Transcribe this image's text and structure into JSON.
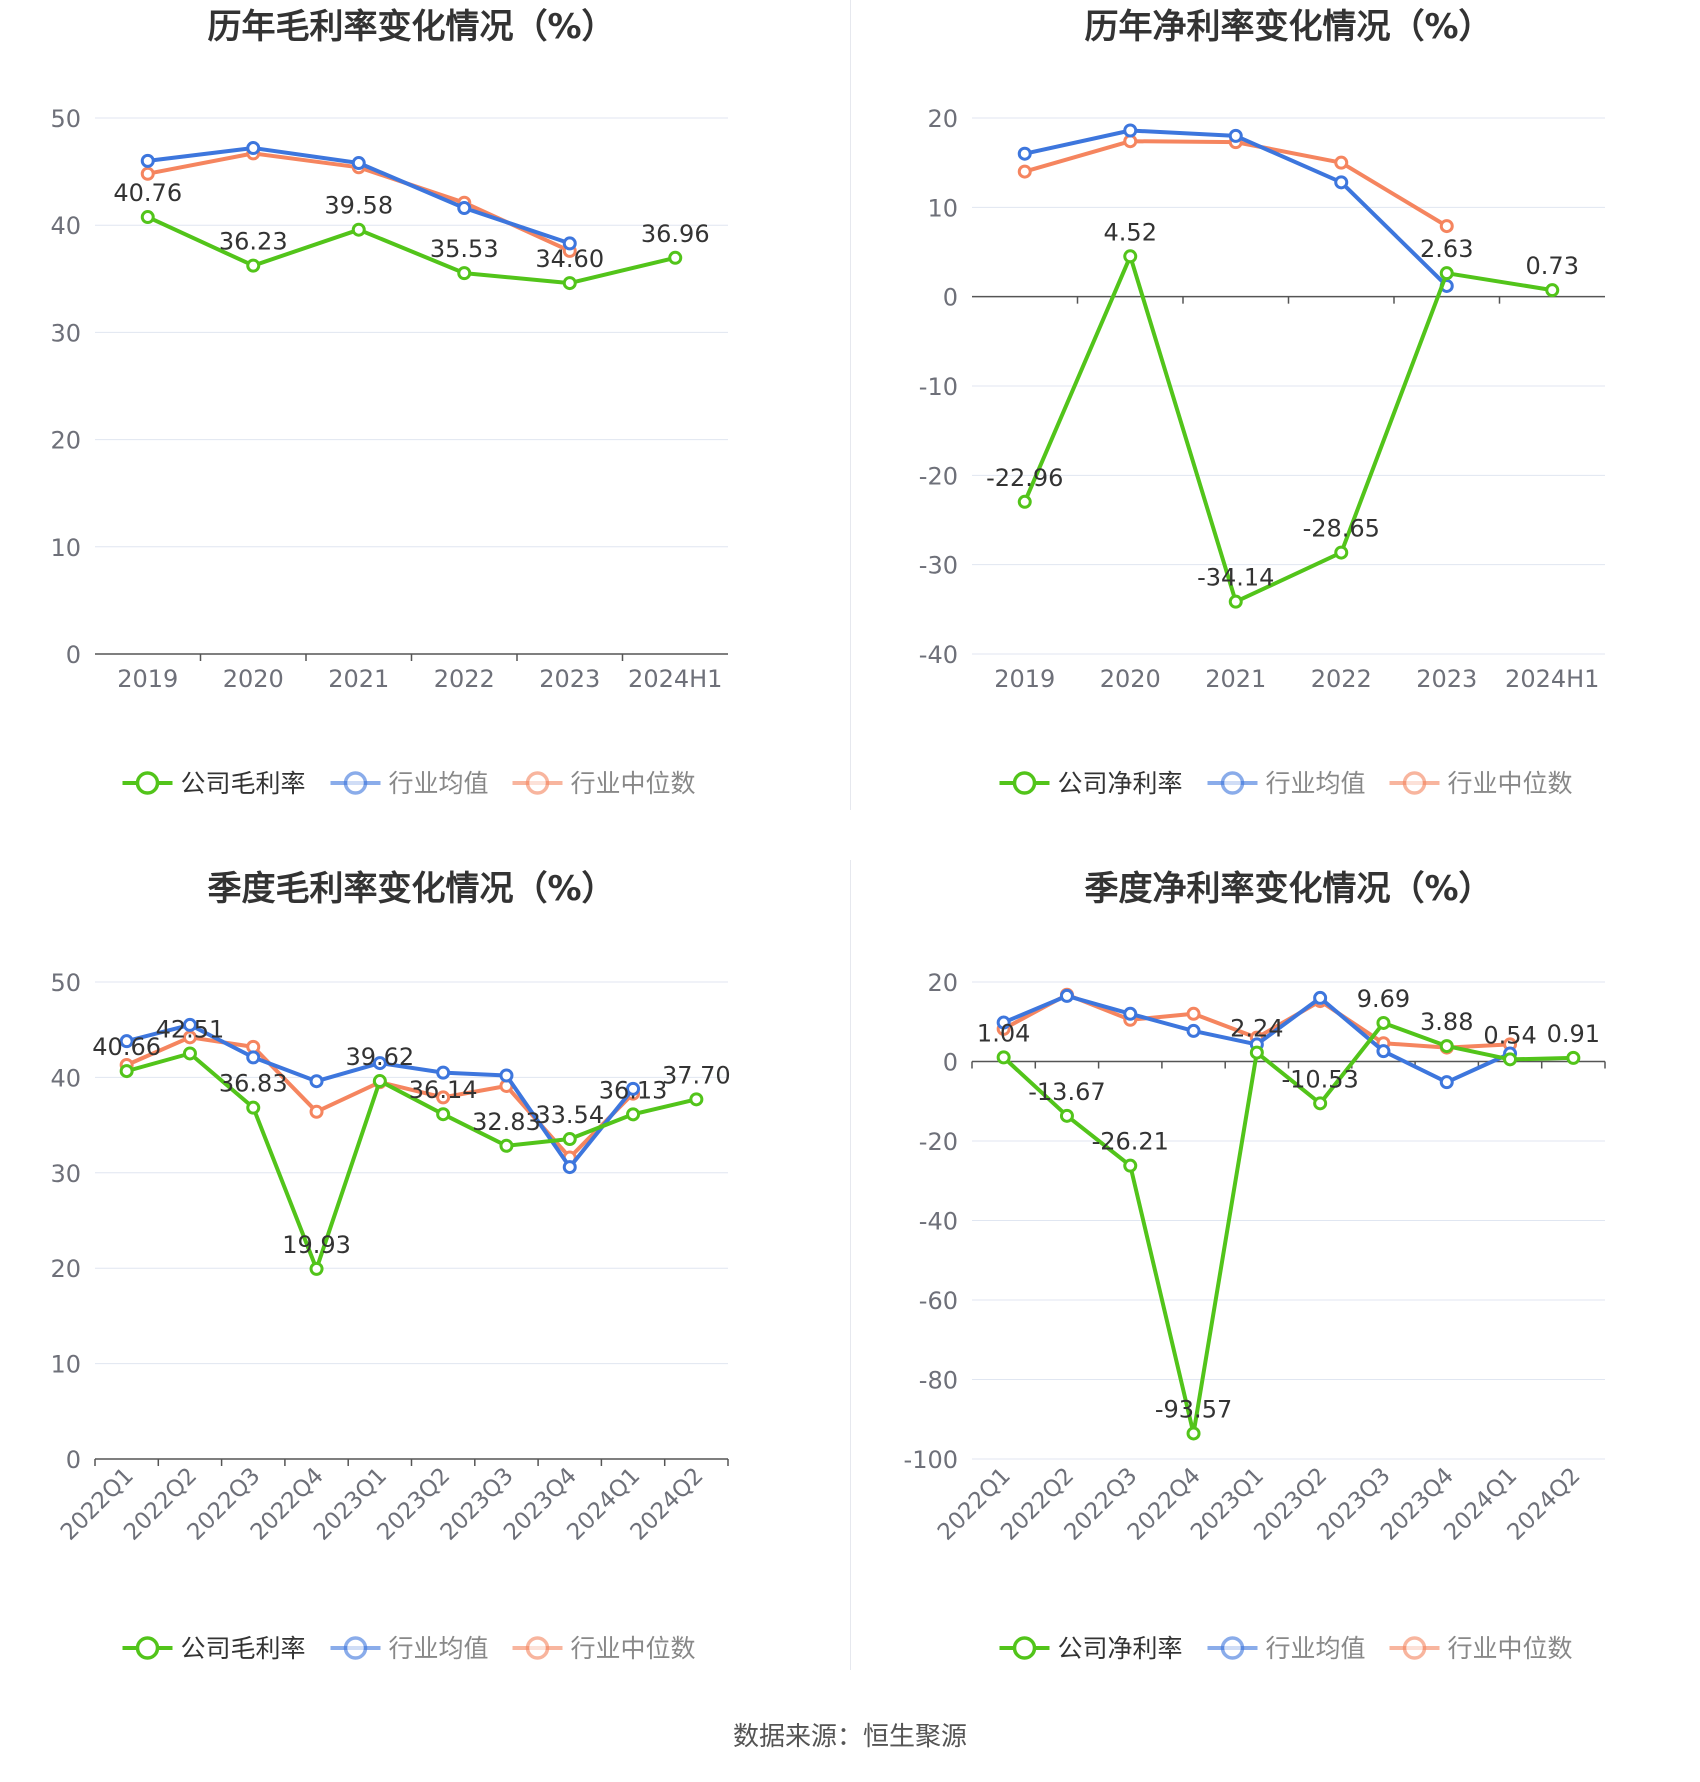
{
  "source_text": "数据来源：恒生聚源",
  "chart_data": [
    {
      "type": "line",
      "title": "历年毛利率变化情况（%）",
      "categories": [
        "2019",
        "2020",
        "2021",
        "2022",
        "2023",
        "2024H1"
      ],
      "ylim": [
        0,
        50
      ],
      "yticks": [
        0,
        10,
        20,
        30,
        40,
        50
      ],
      "grid": true,
      "legend_position": "bottom",
      "series": [
        {
          "name": "公司毛利率",
          "color": "#52c41a",
          "labeled": true,
          "values": [
            40.76,
            36.23,
            39.58,
            35.53,
            34.6,
            36.96
          ],
          "labels": [
            "40.76",
            "36.23",
            "39.58",
            "35.53",
            "34.60",
            "36.96"
          ]
        },
        {
          "name": "行业均值",
          "color": "#3d76dd",
          "labeled": false,
          "values": [
            46.0,
            47.2,
            45.8,
            41.6,
            38.3,
            null
          ]
        },
        {
          "name": "行业中位数",
          "color": "#f5855f",
          "labeled": false,
          "values": [
            44.8,
            46.7,
            45.4,
            42.1,
            37.6,
            null
          ]
        }
      ]
    },
    {
      "type": "line",
      "title": "历年净利率变化情况（%）",
      "categories": [
        "2019",
        "2020",
        "2021",
        "2022",
        "2023",
        "2024H1"
      ],
      "ylim": [
        -40,
        20
      ],
      "yticks": [
        -40,
        -30,
        -20,
        -10,
        0,
        10,
        20
      ],
      "grid": true,
      "legend_position": "bottom",
      "series": [
        {
          "name": "公司净利率",
          "color": "#52c41a",
          "labeled": true,
          "values": [
            -22.96,
            4.52,
            -34.14,
            -28.65,
            2.63,
            0.73
          ],
          "labels": [
            "-22.96",
            "4.52",
            "-34.14",
            "-28.65",
            "2.63",
            "0.73"
          ]
        },
        {
          "name": "行业均值",
          "color": "#3d76dd",
          "labeled": false,
          "values": [
            16.0,
            18.6,
            18.0,
            12.8,
            1.2,
            null
          ]
        },
        {
          "name": "行业中位数",
          "color": "#f5855f",
          "labeled": false,
          "values": [
            14.0,
            17.4,
            17.3,
            15.0,
            7.9,
            null
          ]
        }
      ]
    },
    {
      "type": "line",
      "title": "季度毛利率变化情况（%）",
      "categories": [
        "2022Q1",
        "2022Q2",
        "2022Q3",
        "2022Q4",
        "2023Q1",
        "2023Q2",
        "2023Q3",
        "2023Q4",
        "2024Q1",
        "2024Q2"
      ],
      "ylim": [
        0,
        50
      ],
      "yticks": [
        0,
        10,
        20,
        30,
        40,
        50
      ],
      "grid": true,
      "legend_position": "bottom",
      "series": [
        {
          "name": "公司毛利率",
          "color": "#52c41a",
          "labeled": true,
          "values": [
            40.66,
            42.51,
            36.83,
            19.93,
            39.62,
            36.14,
            32.83,
            33.54,
            36.13,
            37.7
          ],
          "labels": [
            "40.66",
            "42.51",
            "36.83",
            "19.93",
            "39.62",
            "36.14",
            "32.83",
            "33.54",
            "36.13",
            "37.70"
          ]
        },
        {
          "name": "行业均值",
          "color": "#3d76dd",
          "labeled": false,
          "values": [
            43.8,
            45.5,
            42.1,
            39.6,
            41.5,
            40.5,
            40.2,
            30.6,
            38.8,
            null
          ]
        },
        {
          "name": "行业中位数",
          "color": "#f5855f",
          "labeled": false,
          "values": [
            41.3,
            44.2,
            43.2,
            36.4,
            39.5,
            37.9,
            39.1,
            31.6,
            38.3,
            null
          ]
        }
      ]
    },
    {
      "type": "line",
      "title": "季度净利率变化情况（%）",
      "categories": [
        "2022Q1",
        "2022Q2",
        "2022Q3",
        "2022Q4",
        "2023Q1",
        "2023Q2",
        "2023Q3",
        "2023Q4",
        "2024Q1",
        "2024Q2"
      ],
      "ylim": [
        -100,
        20
      ],
      "yticks": [
        -100,
        -80,
        -60,
        -40,
        -20,
        0,
        20
      ],
      "grid": true,
      "legend_position": "bottom",
      "series": [
        {
          "name": "公司净利率",
          "color": "#52c41a",
          "labeled": true,
          "values": [
            1.04,
            -13.67,
            -26.21,
            -93.57,
            2.24,
            -10.53,
            9.69,
            3.88,
            0.54,
            0.91
          ],
          "labels": [
            "1.04",
            "-13.67",
            "-26.21",
            "-93.57",
            "2.24",
            "-10.53",
            "9.69",
            "3.88",
            "0.54",
            "0.91"
          ]
        },
        {
          "name": "行业均值",
          "color": "#3d76dd",
          "labeled": false,
          "values": [
            9.8,
            16.5,
            12.0,
            7.7,
            4.3,
            16.0,
            2.6,
            -5.2,
            2.0,
            null
          ]
        },
        {
          "name": "行业中位数",
          "color": "#f5855f",
          "labeled": false,
          "values": [
            8.2,
            16.8,
            10.5,
            12.0,
            6.0,
            15.2,
            4.6,
            3.5,
            4.3,
            null
          ]
        }
      ]
    }
  ]
}
